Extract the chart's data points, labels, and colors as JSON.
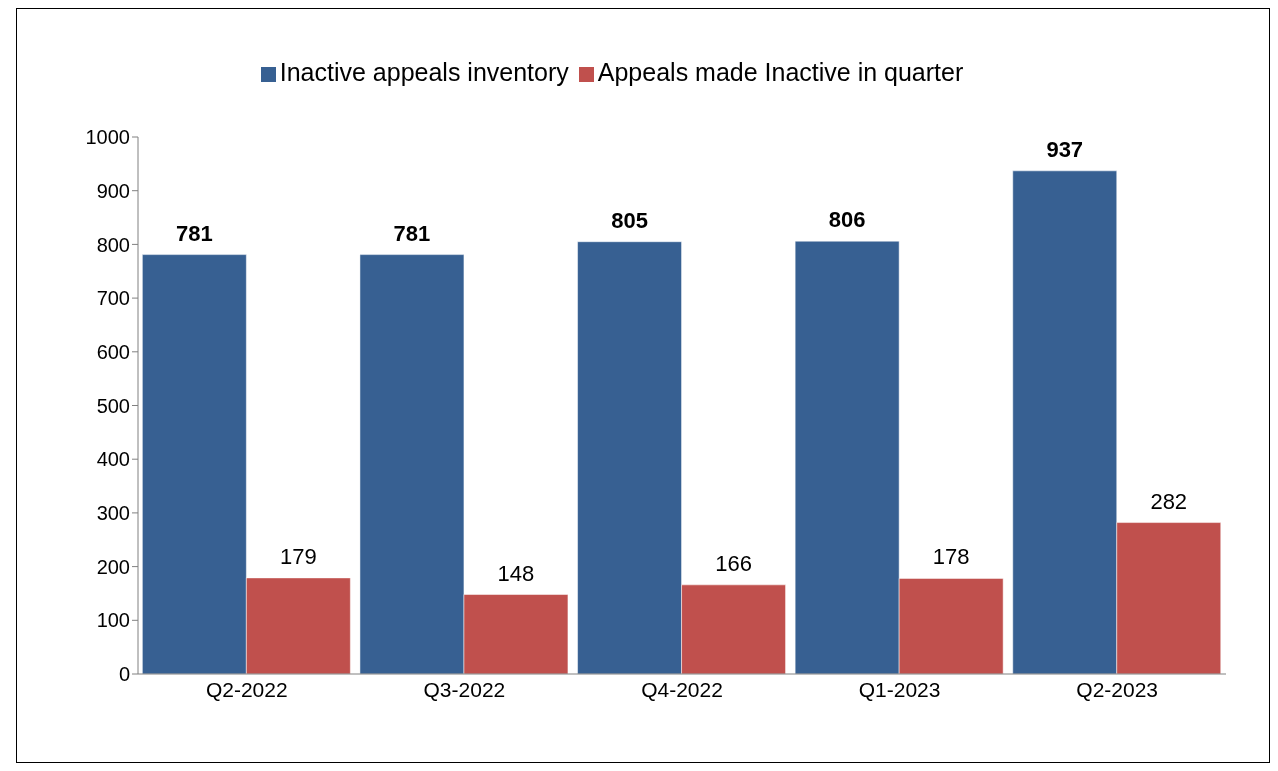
{
  "chart_data": {
    "type": "bar",
    "categories": [
      "Q2-2022",
      "Q3-2022",
      "Q4-2022",
      "Q1-2023",
      "Q2-2023"
    ],
    "series": [
      {
        "name": "Inactive appeals inventory",
        "color": "#376092",
        "values": [
          781,
          781,
          805,
          806,
          937
        ]
      },
      {
        "name": "Appeals made Inactive in quarter",
        "color": "#c0504d",
        "values": [
          179,
          148,
          166,
          178,
          282
        ]
      }
    ],
    "ylim": [
      0,
      1000
    ],
    "yticks": [
      0,
      100,
      200,
      300,
      400,
      500,
      600,
      700,
      800,
      900,
      1000
    ],
    "grid": false,
    "legend": "top",
    "data_labels": true
  }
}
